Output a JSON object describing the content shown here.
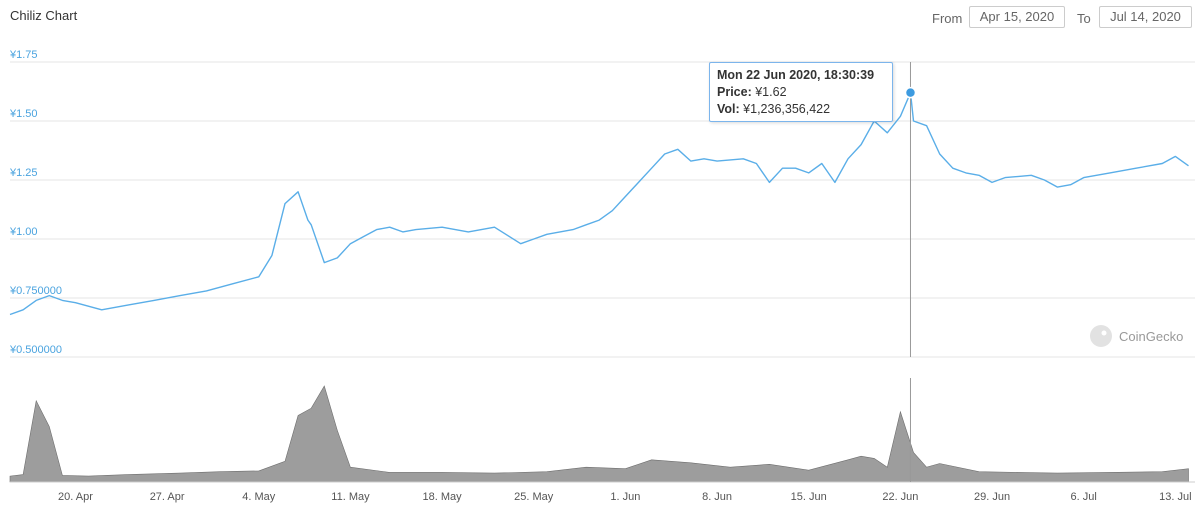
{
  "header": {
    "title": "Chiliz Chart",
    "from_label": "From",
    "from_value": "Apr 15, 2020",
    "to_label": "To",
    "to_value": "Jul 14, 2020"
  },
  "tooltip": {
    "date": "Mon 22 Jun 2020, 18:30:39",
    "price_label": "Price:",
    "price_value": "¥1.62",
    "vol_label": "Vol:",
    "vol_value": "¥1,236,356,422"
  },
  "watermark": "CoinGecko",
  "colors": {
    "line": "#5aaee8",
    "volume": "#8c8c8c",
    "grid": "#e6e6e6",
    "axis_label": "#4aa3df"
  },
  "chart_data": {
    "type": "line",
    "title": "Chiliz Chart",
    "y_ticks": [
      "¥0.500000",
      "¥0.750000",
      "¥1.00",
      "¥1.25",
      "¥1.50",
      "¥1.75"
    ],
    "ylim": [
      0.5,
      1.75
    ],
    "x_tick_labels": [
      "20. Apr",
      "27. Apr",
      "4. May",
      "11. May",
      "18. May",
      "25. May",
      "1. Jun",
      "8. Jun",
      "15. Jun",
      "22. Jun",
      "29. Jun",
      "6. Jul",
      "13. Jul"
    ],
    "x_range": [
      "2020-04-15",
      "2020-07-14"
    ],
    "price_series": {
      "name": "Price",
      "x": [
        "2020-04-15",
        "2020-04-16",
        "2020-04-17",
        "2020-04-18",
        "2020-04-19",
        "2020-04-20",
        "2020-04-22",
        "2020-04-24",
        "2020-04-26",
        "2020-04-28",
        "2020-04-30",
        "2020-05-02",
        "2020-05-04",
        "2020-05-05",
        "2020-05-06",
        "2020-05-07",
        "2020-05-07T18:00",
        "2020-05-08",
        "2020-05-09",
        "2020-05-10",
        "2020-05-11",
        "2020-05-12",
        "2020-05-13",
        "2020-05-14",
        "2020-05-15",
        "2020-05-16",
        "2020-05-18",
        "2020-05-19",
        "2020-05-20",
        "2020-05-22",
        "2020-05-24",
        "2020-05-25",
        "2020-05-26",
        "2020-05-28",
        "2020-05-29",
        "2020-05-30",
        "2020-05-31",
        "2020-06-01",
        "2020-06-02",
        "2020-06-03",
        "2020-06-04",
        "2020-06-05",
        "2020-06-06",
        "2020-06-07",
        "2020-06-08",
        "2020-06-10",
        "2020-06-11",
        "2020-06-12",
        "2020-06-13",
        "2020-06-14",
        "2020-06-15",
        "2020-06-16",
        "2020-06-17",
        "2020-06-18",
        "2020-06-19",
        "2020-06-20",
        "2020-06-21",
        "2020-06-22",
        "2020-06-22T18:30",
        "2020-06-23",
        "2020-06-24",
        "2020-06-25",
        "2020-06-26",
        "2020-06-27",
        "2020-06-28",
        "2020-06-29",
        "2020-06-30",
        "2020-07-02",
        "2020-07-03",
        "2020-07-04",
        "2020-07-05",
        "2020-07-06",
        "2020-07-08",
        "2020-07-10",
        "2020-07-12",
        "2020-07-13",
        "2020-07-14"
      ],
      "values": [
        0.68,
        0.7,
        0.74,
        0.76,
        0.74,
        0.73,
        0.7,
        0.72,
        0.74,
        0.76,
        0.78,
        0.81,
        0.84,
        0.93,
        1.15,
        1.2,
        1.08,
        1.06,
        0.9,
        0.92,
        0.98,
        1.01,
        1.04,
        1.05,
        1.03,
        1.04,
        1.05,
        1.04,
        1.03,
        1.05,
        0.98,
        1.0,
        1.02,
        1.04,
        1.06,
        1.08,
        1.12,
        1.18,
        1.24,
        1.3,
        1.36,
        1.38,
        1.33,
        1.34,
        1.33,
        1.34,
        1.32,
        1.24,
        1.3,
        1.3,
        1.28,
        1.32,
        1.24,
        1.34,
        1.4,
        1.5,
        1.45,
        1.52,
        1.62,
        1.5,
        1.48,
        1.36,
        1.3,
        1.28,
        1.27,
        1.24,
        1.26,
        1.27,
        1.25,
        1.22,
        1.23,
        1.26,
        1.28,
        1.3,
        1.32,
        1.35,
        1.31
      ]
    },
    "volume_series": {
      "name": "Vol",
      "x": [
        "2020-04-15",
        "2020-04-16",
        "2020-04-17",
        "2020-04-18",
        "2020-04-19",
        "2020-04-21",
        "2020-04-24",
        "2020-04-28",
        "2020-05-01",
        "2020-05-04",
        "2020-05-06",
        "2020-05-07",
        "2020-05-08",
        "2020-05-09",
        "2020-05-10",
        "2020-05-11",
        "2020-05-14",
        "2020-05-18",
        "2020-05-22",
        "2020-05-26",
        "2020-05-29",
        "2020-06-01",
        "2020-06-03",
        "2020-06-06",
        "2020-06-09",
        "2020-06-12",
        "2020-06-15",
        "2020-06-18",
        "2020-06-19",
        "2020-06-20",
        "2020-06-21",
        "2020-06-22",
        "2020-06-23",
        "2020-06-24",
        "2020-06-25",
        "2020-06-28",
        "2020-07-01",
        "2020-07-04",
        "2020-07-08",
        "2020-07-12",
        "2020-07-14"
      ],
      "values": [
        8,
        10,
        110,
        75,
        9,
        8,
        10,
        12,
        14,
        15,
        28,
        90,
        100,
        130,
        70,
        20,
        13,
        13,
        12,
        14,
        20,
        18,
        30,
        26,
        20,
        24,
        16,
        30,
        35,
        32,
        20,
        95,
        40,
        20,
        25,
        14,
        13,
        12,
        13,
        14,
        18
      ]
    }
  }
}
